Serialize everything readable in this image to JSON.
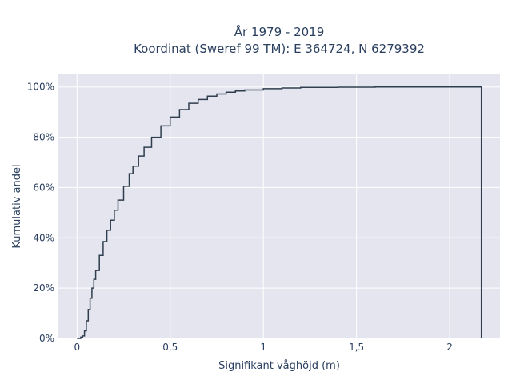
{
  "chart_data": {
    "type": "line",
    "title_line1": "År 1979 - 2019",
    "title_line2": "Koordinat (Sweref 99 TM): E 364724, N 6279392",
    "xlabel": "Signifikant våghöjd (m)",
    "ylabel": "Kumulativ andel",
    "xlim": [
      -0.1,
      2.27
    ],
    "ylim": [
      0,
      1.05
    ],
    "x_ticks": [
      {
        "value": 0,
        "label": "0"
      },
      {
        "value": 0.5,
        "label": "0,5"
      },
      {
        "value": 1,
        "label": "1"
      },
      {
        "value": 1.5,
        "label": "1,5"
      },
      {
        "value": 2,
        "label": "2"
      }
    ],
    "y_ticks": [
      {
        "value": 0,
        "label": "0%"
      },
      {
        "value": 0.2,
        "label": "20%"
      },
      {
        "value": 0.4,
        "label": "40%"
      },
      {
        "value": 0.6,
        "label": "60%"
      },
      {
        "value": 0.8,
        "label": "80%"
      },
      {
        "value": 1.0,
        "label": "100%"
      }
    ],
    "line_shape": "step",
    "grid": true,
    "series": [
      {
        "color": "#2f3e4e",
        "x": [
          0.0,
          0.02,
          0.03,
          0.04,
          0.05,
          0.06,
          0.07,
          0.08,
          0.09,
          0.1,
          0.12,
          0.14,
          0.16,
          0.18,
          0.2,
          0.22,
          0.25,
          0.28,
          0.3,
          0.33,
          0.36,
          0.4,
          0.45,
          0.5,
          0.55,
          0.6,
          0.65,
          0.7,
          0.75,
          0.8,
          0.85,
          0.9,
          1.0,
          1.1,
          1.2,
          1.4,
          1.6,
          1.8,
          2.0,
          2.16,
          2.17
        ],
        "y": [
          0.0,
          0.005,
          0.01,
          0.03,
          0.07,
          0.115,
          0.16,
          0.2,
          0.235,
          0.27,
          0.33,
          0.385,
          0.43,
          0.47,
          0.51,
          0.55,
          0.605,
          0.655,
          0.685,
          0.725,
          0.76,
          0.8,
          0.845,
          0.88,
          0.91,
          0.935,
          0.95,
          0.963,
          0.972,
          0.979,
          0.984,
          0.988,
          0.993,
          0.996,
          0.998,
          0.999,
          1.0,
          1.0,
          1.0,
          1.0,
          0.0
        ]
      }
    ]
  }
}
